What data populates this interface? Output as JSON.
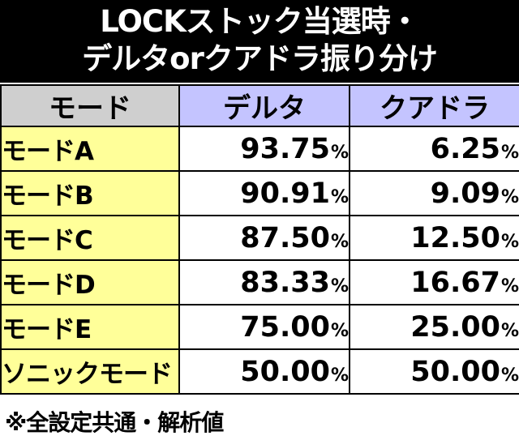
{
  "title": {
    "line1": "LOCKストック当選時・",
    "line2": "デルタorクアドラ振り分け"
  },
  "table": {
    "headers": [
      "モード",
      "デルタ",
      "クアドラ"
    ],
    "percent_sign": "%",
    "rows": [
      {
        "mode": "モードA",
        "delta": "93.75",
        "quadra": "6.25"
      },
      {
        "mode": "モードB",
        "delta": "90.91",
        "quadra": "9.09"
      },
      {
        "mode": "モードC",
        "delta": "87.50",
        "quadra": "12.50"
      },
      {
        "mode": "モードD",
        "delta": "83.33",
        "quadra": "16.67"
      },
      {
        "mode": "モードE",
        "delta": "75.00",
        "quadra": "25.00"
      },
      {
        "mode": "ソニックモード",
        "delta": "50.00",
        "quadra": "50.00"
      }
    ]
  },
  "footnote": "※全設定共通・解析値",
  "colors": {
    "title_bg": "#000000",
    "title_text": "#ffffff",
    "header_mode_bg": "#cfcfcf",
    "header_value_bg": "#c4c4ff",
    "mode_cell_bg": "#ffff99",
    "value_cell_bg": "#ffffff"
  }
}
